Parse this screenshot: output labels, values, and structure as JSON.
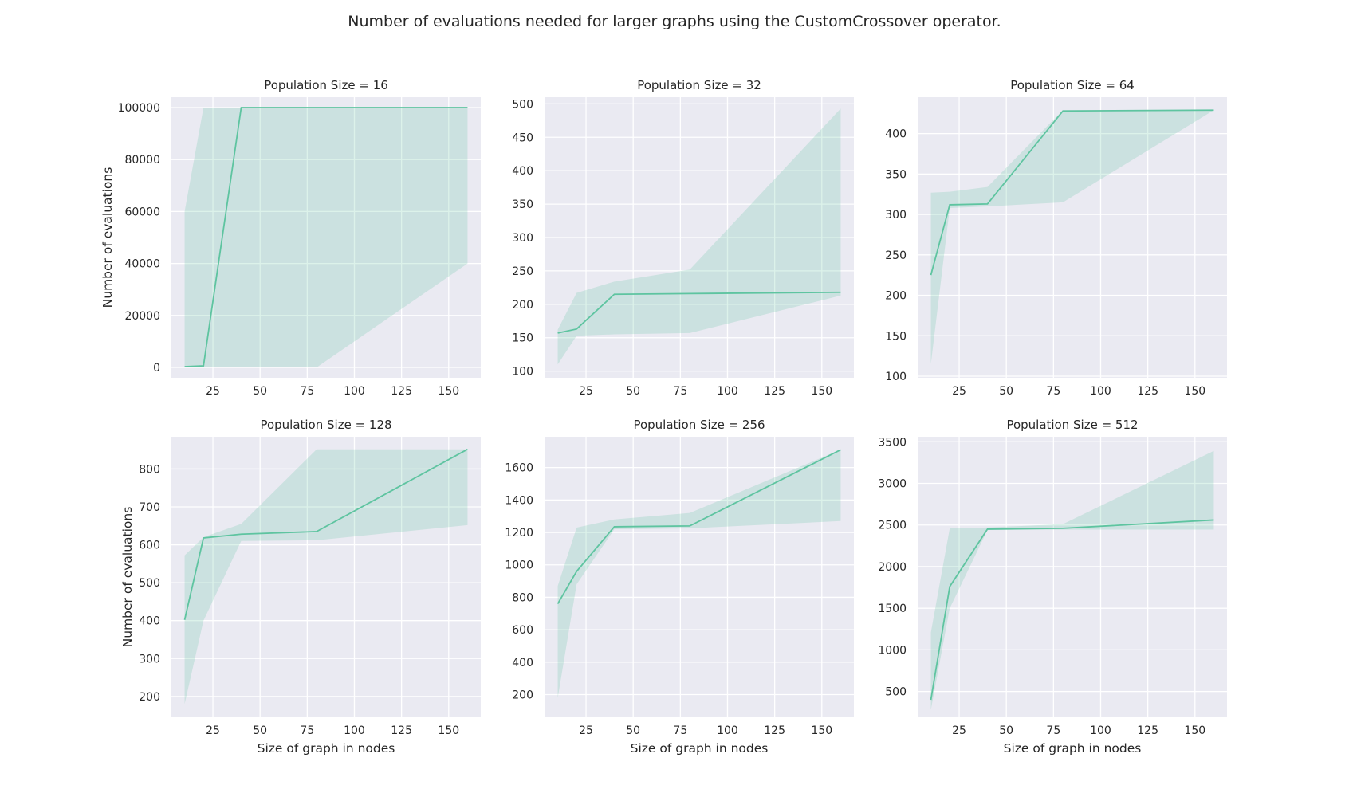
{
  "figure": {
    "title": "Number of evaluations needed for larger graphs using the CustomCrossover operator.",
    "colors": {
      "line": "#5ec4a0",
      "band": "#5ec4a0",
      "axes_bg": "#eaeaf2",
      "grid": "#ffffff"
    }
  },
  "chart_data": [
    {
      "type": "line",
      "title": "Population Size = 16",
      "xlabel": "",
      "ylabel": "Number of evaluations",
      "xlim": [
        3,
        167
      ],
      "ylim": [
        -4000,
        104000
      ],
      "xticks": [
        25,
        50,
        75,
        100,
        125,
        150
      ],
      "yticks": [
        0,
        20000,
        40000,
        60000,
        80000,
        100000
      ],
      "grid": true,
      "x": [
        10,
        20,
        40,
        80,
        160
      ],
      "y": [
        300,
        600,
        100000,
        100000,
        100000
      ],
      "band_low": [
        0,
        0,
        0,
        0,
        40000
      ],
      "band_high": [
        60000,
        100000,
        100000,
        100000,
        100000
      ]
    },
    {
      "type": "line",
      "title": "Population Size = 32",
      "xlabel": "",
      "ylabel": "",
      "xlim": [
        3,
        167
      ],
      "ylim": [
        90,
        510
      ],
      "xticks": [
        25,
        50,
        75,
        100,
        125,
        150
      ],
      "yticks": [
        100,
        150,
        200,
        250,
        300,
        350,
        400,
        450,
        500
      ],
      "grid": true,
      "x": [
        10,
        20,
        40,
        80,
        160
      ],
      "y": [
        157,
        163,
        215,
        216,
        218
      ],
      "band_low": [
        110,
        153,
        155,
        157,
        213
      ],
      "band_high": [
        162,
        217,
        234,
        252,
        493
      ]
    },
    {
      "type": "line",
      "title": "Population Size = 64",
      "xlabel": "",
      "ylabel": "",
      "xlim": [
        3,
        167
      ],
      "ylim": [
        98,
        445
      ],
      "xticks": [
        25,
        50,
        75,
        100,
        125,
        150
      ],
      "yticks": [
        100,
        150,
        200,
        250,
        300,
        350,
        400
      ],
      "grid": true,
      "x": [
        10,
        20,
        40,
        80,
        160
      ],
      "y": [
        225,
        312,
        313,
        428,
        429
      ],
      "band_low": [
        115,
        308,
        310,
        315,
        429
      ],
      "band_high": [
        327,
        328,
        334,
        429,
        429
      ]
    },
    {
      "type": "line",
      "title": "Population Size = 128",
      "xlabel": "Size of graph in nodes",
      "ylabel": "Number of evaluations",
      "xlim": [
        3,
        167
      ],
      "ylim": [
        145,
        885
      ],
      "xticks": [
        25,
        50,
        75,
        100,
        125,
        150
      ],
      "yticks": [
        200,
        300,
        400,
        500,
        600,
        700,
        800
      ],
      "grid": true,
      "x": [
        10,
        20,
        40,
        80,
        160
      ],
      "y": [
        402,
        618,
        628,
        635,
        852
      ],
      "band_low": [
        180,
        400,
        610,
        612,
        652
      ],
      "band_high": [
        572,
        620,
        655,
        852,
        852
      ]
    },
    {
      "type": "line",
      "title": "Population Size = 256",
      "xlabel": "Size of graph in nodes",
      "ylabel": "",
      "xlim": [
        3,
        167
      ],
      "ylim": [
        60,
        1790
      ],
      "xticks": [
        25,
        50,
        75,
        100,
        125,
        150
      ],
      "yticks": [
        200,
        400,
        600,
        800,
        1000,
        1200,
        1400,
        1600
      ],
      "grid": true,
      "x": [
        10,
        20,
        40,
        80,
        160
      ],
      "y": [
        760,
        960,
        1235,
        1240,
        1710
      ],
      "band_low": [
        180,
        880,
        1220,
        1225,
        1270
      ],
      "band_high": [
        870,
        1230,
        1280,
        1320,
        1710
      ]
    },
    {
      "type": "line",
      "title": "Population Size = 512",
      "xlabel": "Size of graph in nodes",
      "ylabel": "",
      "xlim": [
        3,
        167
      ],
      "ylim": [
        190,
        3560
      ],
      "xticks": [
        25,
        50,
        75,
        100,
        125,
        150
      ],
      "yticks": [
        500,
        1000,
        1500,
        2000,
        2500,
        3000,
        3500
      ],
      "grid": true,
      "x": [
        10,
        20,
        40,
        80,
        160
      ],
      "y": [
        400,
        1760,
        2450,
        2460,
        2560
      ],
      "band_low": [
        280,
        1500,
        2440,
        2445,
        2445
      ],
      "band_high": [
        1210,
        2460,
        2470,
        2510,
        3390
      ]
    }
  ]
}
